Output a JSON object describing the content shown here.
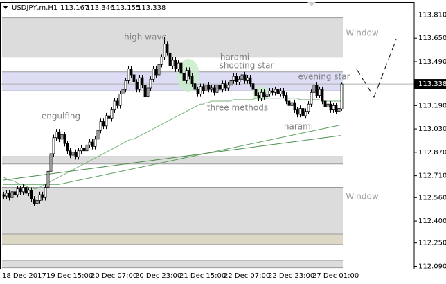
{
  "header": {
    "symbol": "USDJPY,m,H1",
    "last_bar": {
      "open": 113.167,
      "high": 113.346,
      "low": 113.155,
      "close": 113.338
    }
  },
  "chart_data": {
    "type": "candlestick",
    "categories": [
      "18 Dec 2017",
      null,
      null,
      null,
      null,
      null,
      null,
      null,
      null,
      null,
      null,
      null,
      null,
      null,
      null,
      null,
      "19 Dec 15:00",
      null,
      null,
      null,
      null,
      null,
      null,
      null,
      null,
      null,
      null,
      null,
      null,
      null,
      null,
      null,
      "20 Dec 07:00",
      null,
      null,
      null,
      null,
      null,
      null,
      null,
      null,
      null,
      null,
      null,
      null,
      null,
      null,
      null,
      "20 Dec 23:00",
      null,
      null,
      null,
      null,
      null,
      null,
      null,
      null,
      null,
      null,
      null,
      null,
      null,
      null,
      null,
      "21 Dec 15:00",
      null,
      null,
      null,
      null,
      null,
      null,
      null,
      null,
      null,
      null,
      null,
      null,
      null,
      null,
      null,
      "22 Dec 07:00",
      null,
      null,
      null,
      null,
      null,
      null,
      null,
      null,
      null,
      null,
      null,
      null,
      null,
      null,
      null,
      "22 Dec 23:00",
      null,
      null,
      null,
      null,
      null,
      null,
      null,
      null,
      null,
      null,
      null,
      null,
      null,
      null,
      null,
      "27 Dec 01:00",
      null,
      null,
      null,
      null,
      null,
      null,
      null,
      null,
      null,
      null
    ],
    "open": [
      112.58,
      112.57,
      112.59,
      112.56,
      112.6,
      112.58,
      112.62,
      112.6,
      112.63,
      112.59,
      112.61,
      112.55,
      112.52,
      112.54,
      112.58,
      112.56,
      112.63,
      112.74,
      112.86,
      112.97,
      113.01,
      112.96,
      112.99,
      112.93,
      112.88,
      112.85,
      112.87,
      112.84,
      112.88,
      112.9,
      112.88,
      112.92,
      112.94,
      112.91,
      112.96,
      113.02,
      113.08,
      113.05,
      113.12,
      113.1,
      113.16,
      113.22,
      113.19,
      113.27,
      113.3,
      113.36,
      113.44,
      113.4,
      113.35,
      113.3,
      113.38,
      113.33,
      113.25,
      113.31,
      113.37,
      113.44,
      113.4,
      113.47,
      113.52,
      113.61,
      113.55,
      113.46,
      113.5,
      113.44,
      113.48,
      113.41,
      113.36,
      113.43,
      113.39,
      113.34,
      113.3,
      113.27,
      113.32,
      113.29,
      113.33,
      113.3,
      113.31,
      113.28,
      113.33,
      113.3,
      113.34,
      113.31,
      113.33,
      113.36,
      113.39,
      113.35,
      113.37,
      113.4,
      113.36,
      113.38,
      113.34,
      113.3,
      113.26,
      113.24,
      113.28,
      113.25,
      113.27,
      113.29,
      113.28,
      113.3,
      113.27,
      113.29,
      113.26,
      113.22,
      113.19,
      113.21,
      113.16,
      113.13,
      113.17,
      113.12,
      113.15,
      113.2,
      113.28,
      113.33,
      113.26,
      113.3,
      113.22,
      113.18,
      113.2,
      113.16,
      113.19,
      113.15,
      113.167
    ],
    "high": [
      112.6,
      112.61,
      112.61,
      112.62,
      112.62,
      112.64,
      112.64,
      112.65,
      112.65,
      112.63,
      112.63,
      112.57,
      112.56,
      112.6,
      112.6,
      112.65,
      112.76,
      112.88,
      112.99,
      113.03,
      113.03,
      113.01,
      113.01,
      112.95,
      112.9,
      112.89,
      112.89,
      112.9,
      112.92,
      112.92,
      112.94,
      112.96,
      112.96,
      112.98,
      113.04,
      113.1,
      113.1,
      113.14,
      113.14,
      113.18,
      113.24,
      113.24,
      113.29,
      113.32,
      113.38,
      113.46,
      113.46,
      113.42,
      113.37,
      113.4,
      113.4,
      113.35,
      113.33,
      113.39,
      113.46,
      113.46,
      113.49,
      113.54,
      113.66,
      113.63,
      113.57,
      113.52,
      113.52,
      113.5,
      113.5,
      113.43,
      113.45,
      113.45,
      113.41,
      113.36,
      113.32,
      113.34,
      113.34,
      113.35,
      113.35,
      113.33,
      113.33,
      113.35,
      113.35,
      113.36,
      113.36,
      113.35,
      113.38,
      113.41,
      113.41,
      113.39,
      113.42,
      113.42,
      113.4,
      113.4,
      113.36,
      113.32,
      113.28,
      113.3,
      113.3,
      113.29,
      113.31,
      113.31,
      113.32,
      113.32,
      113.31,
      113.31,
      113.28,
      113.24,
      113.23,
      113.23,
      113.18,
      113.19,
      113.19,
      113.17,
      113.22,
      113.3,
      113.35,
      113.35,
      113.32,
      113.32,
      113.24,
      113.22,
      113.22,
      113.21,
      113.21,
      113.19,
      113.346
    ],
    "low": [
      112.55,
      112.55,
      112.54,
      112.54,
      112.56,
      112.56,
      112.58,
      112.58,
      112.57,
      112.57,
      112.53,
      112.5,
      112.5,
      112.52,
      112.54,
      112.54,
      112.61,
      112.72,
      112.84,
      112.95,
      112.94,
      112.94,
      112.91,
      112.86,
      112.83,
      112.83,
      112.82,
      112.82,
      112.86,
      112.86,
      112.86,
      112.9,
      112.89,
      112.89,
      112.94,
      113.0,
      113.03,
      113.03,
      113.08,
      113.08,
      113.14,
      113.17,
      113.17,
      113.25,
      113.28,
      113.34,
      113.38,
      113.33,
      113.28,
      113.28,
      113.31,
      113.23,
      113.23,
      113.29,
      113.35,
      113.38,
      113.38,
      113.45,
      113.5,
      113.53,
      113.44,
      113.44,
      113.42,
      113.42,
      113.39,
      113.34,
      113.34,
      113.37,
      113.32,
      113.28,
      113.25,
      113.25,
      113.27,
      113.27,
      113.28,
      113.28,
      113.26,
      113.26,
      113.28,
      113.28,
      113.29,
      113.29,
      113.31,
      113.34,
      113.33,
      113.33,
      113.35,
      113.34,
      113.34,
      113.32,
      113.28,
      113.24,
      113.22,
      113.22,
      113.23,
      113.23,
      113.25,
      113.26,
      113.26,
      113.25,
      113.25,
      113.24,
      113.2,
      113.17,
      113.17,
      113.14,
      113.11,
      113.11,
      113.1,
      113.1,
      113.13,
      113.18,
      113.26,
      113.24,
      113.24,
      113.2,
      113.16,
      113.16,
      113.14,
      113.14,
      113.13,
      113.13,
      113.155
    ],
    "close": [
      112.57,
      112.59,
      112.56,
      112.6,
      112.58,
      112.62,
      112.6,
      112.63,
      112.59,
      112.61,
      112.55,
      112.52,
      112.54,
      112.58,
      112.56,
      112.63,
      112.74,
      112.86,
      112.97,
      113.01,
      112.96,
      112.99,
      112.93,
      112.88,
      112.85,
      112.87,
      112.84,
      112.88,
      112.9,
      112.88,
      112.92,
      112.94,
      112.91,
      112.96,
      113.02,
      113.08,
      113.05,
      113.12,
      113.1,
      113.16,
      113.22,
      113.19,
      113.27,
      113.3,
      113.36,
      113.44,
      113.4,
      113.35,
      113.3,
      113.38,
      113.33,
      113.25,
      113.31,
      113.37,
      113.44,
      113.4,
      113.47,
      113.52,
      113.61,
      113.55,
      113.46,
      113.5,
      113.44,
      113.48,
      113.41,
      113.36,
      113.43,
      113.39,
      113.34,
      113.3,
      113.27,
      113.32,
      113.29,
      113.33,
      113.3,
      113.31,
      113.28,
      113.33,
      113.3,
      113.34,
      113.31,
      113.33,
      113.36,
      113.39,
      113.35,
      113.37,
      113.4,
      113.36,
      113.38,
      113.34,
      113.3,
      113.26,
      113.24,
      113.28,
      113.25,
      113.27,
      113.29,
      113.28,
      113.3,
      113.27,
      113.29,
      113.26,
      113.22,
      113.19,
      113.21,
      113.16,
      113.13,
      113.17,
      113.12,
      113.15,
      113.2,
      113.28,
      113.33,
      113.26,
      113.3,
      113.22,
      113.18,
      113.2,
      113.16,
      113.19,
      113.15,
      113.17,
      113.338
    ],
    "up_color": "#ffffff",
    "down_color": "#000000",
    "outline_color": "#000000",
    "lines": [
      {
        "color": "#79b079",
        "values": [
          112.7,
          112.69,
          112.68,
          112.68,
          112.67,
          112.66,
          112.65,
          112.65,
          112.64,
          112.63,
          112.63,
          112.62,
          112.62,
          112.63,
          112.64,
          112.65,
          112.66,
          112.67,
          112.68,
          112.69,
          112.7,
          112.71,
          112.72,
          112.73,
          112.74,
          112.75,
          112.76,
          112.77,
          112.78,
          112.79,
          112.8,
          112.81,
          112.82,
          112.83,
          112.84,
          112.85,
          112.86,
          112.87,
          112.88,
          112.89,
          112.9,
          112.91,
          112.92,
          112.93,
          112.94,
          112.95,
          112.96,
          112.96,
          112.97,
          112.98,
          112.99,
          113.0,
          113.01,
          113.02,
          113.03,
          113.04,
          113.05,
          113.06,
          113.07,
          113.08,
          113.09,
          113.1,
          113.11,
          113.12,
          113.13,
          113.14,
          113.15,
          113.16,
          113.17,
          113.18,
          113.19,
          113.2,
          113.2,
          113.21,
          113.21,
          113.22,
          113.22,
          113.22,
          113.22,
          113.22,
          113.22,
          113.22,
          113.22,
          113.23,
          113.23,
          113.23,
          113.23,
          113.23,
          113.23,
          113.23,
          113.23,
          113.24,
          113.24,
          113.24,
          113.24,
          113.24,
          113.24,
          113.24,
          113.24,
          113.24,
          113.24,
          113.24,
          113.24,
          113.24,
          113.24,
          113.24,
          113.24,
          113.23,
          113.23,
          113.23,
          113.23,
          113.23,
          113.23,
          113.23,
          113.23,
          113.22,
          113.22,
          113.22,
          113.22,
          113.22,
          113.22,
          113.22,
          113.22
        ]
      },
      {
        "color": "#5f9f5f",
        "values": [
          112.65,
          112.65,
          112.65,
          112.65,
          112.65,
          112.65,
          112.65,
          112.65,
          112.65,
          112.65,
          112.65,
          112.65,
          112.65,
          112.65,
          112.65,
          112.65,
          112.65,
          112.65,
          112.65,
          112.65,
          112.65,
          112.654,
          112.658,
          112.662,
          112.666,
          112.67,
          112.674,
          112.678,
          112.682,
          112.686,
          112.69,
          112.694,
          112.698,
          112.702,
          112.706,
          112.71,
          112.714,
          112.718,
          112.722,
          112.726,
          112.73,
          112.734,
          112.738,
          112.742,
          112.746,
          112.75,
          112.754,
          112.758,
          112.762,
          112.766,
          112.77,
          112.774,
          112.778,
          112.782,
          112.786,
          112.79,
          112.794,
          112.798,
          112.802,
          112.806,
          112.81,
          112.814,
          112.818,
          112.822,
          112.826,
          112.83,
          112.834,
          112.838,
          112.842,
          112.846,
          112.85,
          112.854,
          112.858,
          112.862,
          112.866,
          112.87,
          112.874,
          112.878,
          112.882,
          112.886,
          112.89,
          112.894,
          112.898,
          112.902,
          112.906,
          112.91,
          112.914,
          112.918,
          112.922,
          112.926,
          112.93,
          112.934,
          112.938,
          112.942,
          112.946,
          112.95,
          112.954,
          112.958,
          112.962,
          112.966,
          112.97,
          112.974,
          112.978,
          112.982,
          112.986,
          112.99,
          112.994,
          112.998,
          113.002,
          113.006,
          113.01,
          113.014,
          113.018,
          113.022,
          113.026,
          113.03,
          113.034,
          113.038,
          113.042,
          113.046,
          113.05,
          113.054,
          113.058
        ]
      },
      {
        "color": "#4c8c4c",
        "values": [
          112.68,
          112.6825,
          112.685,
          112.6875,
          112.69,
          112.6925,
          112.695,
          112.6975,
          112.7,
          112.7025,
          112.705,
          112.7075,
          112.71,
          112.7125,
          112.715,
          112.7175,
          112.72,
          112.7225,
          112.725,
          112.7275,
          112.73,
          112.7325,
          112.735,
          112.7375,
          112.74,
          112.7425,
          112.745,
          112.7475,
          112.75,
          112.7525,
          112.755,
          112.7575,
          112.76,
          112.7625,
          112.765,
          112.7675,
          112.77,
          112.7725,
          112.775,
          112.7775,
          112.78,
          112.7825,
          112.785,
          112.7875,
          112.79,
          112.7925,
          112.795,
          112.7975,
          112.8,
          112.8025,
          112.805,
          112.8075,
          112.81,
          112.8125,
          112.815,
          112.8175,
          112.82,
          112.8225,
          112.825,
          112.8275,
          112.83,
          112.8325,
          112.835,
          112.8375,
          112.84,
          112.8425,
          112.845,
          112.8475,
          112.85,
          112.8525,
          112.855,
          112.8575,
          112.86,
          112.8625,
          112.865,
          112.8675,
          112.87,
          112.8725,
          112.875,
          112.8775,
          112.88,
          112.8825,
          112.885,
          112.8875,
          112.89,
          112.8925,
          112.895,
          112.8975,
          112.9,
          112.9025,
          112.905,
          112.9075,
          112.91,
          112.9125,
          112.915,
          112.9175,
          112.92,
          112.9225,
          112.925,
          112.9275,
          112.93,
          112.9325,
          112.935,
          112.9375,
          112.94,
          112.9425,
          112.945,
          112.9475,
          112.95,
          112.9525,
          112.955,
          112.9575,
          112.96,
          112.9625,
          112.965,
          112.9675,
          112.97,
          112.9725,
          112.975,
          112.9775,
          112.98,
          112.9825,
          112.985
        ]
      }
    ],
    "zones": [
      {
        "top": 113.79,
        "bottom": 113.52,
        "color": "#dcdcdc"
      },
      {
        "top": 113.42,
        "bottom": 113.29,
        "color": "#dcdcf4"
      },
      {
        "top": 112.84,
        "bottom": 112.79,
        "color": "#dcdcdc"
      },
      {
        "top": 112.63,
        "bottom": 112.31,
        "color": "#dcdcdc"
      },
      {
        "top": 112.31,
        "bottom": 112.24,
        "color": "#ddd8c6"
      },
      {
        "top": 112.13,
        "bottom": 112.08,
        "color": "#dcdcdc"
      }
    ],
    "current_price": 113.338,
    "ylim": [
      112.071,
      113.895
    ],
    "yticks": [
      {
        "value": 113.81,
        "label": "113.810"
      },
      {
        "value": 113.65,
        "label": "113.650"
      },
      {
        "value": 113.49,
        "label": "113.490"
      },
      {
        "value": 113.19,
        "label": "113.190"
      },
      {
        "value": 113.03,
        "label": "113.030"
      },
      {
        "value": 112.87,
        "label": "112.870"
      },
      {
        "value": 112.71,
        "label": "112.710"
      },
      {
        "value": 112.56,
        "label": "112.560"
      },
      {
        "value": 112.4,
        "label": "112.400"
      },
      {
        "value": 112.25,
        "label": "112.250"
      },
      {
        "value": 112.09,
        "label": "112.090"
      }
    ],
    "annotations": [
      "high wave",
      "harami",
      "shooting star",
      "evening star",
      "engulfing",
      "three methods",
      "harami",
      "Window",
      "Window"
    ]
  }
}
